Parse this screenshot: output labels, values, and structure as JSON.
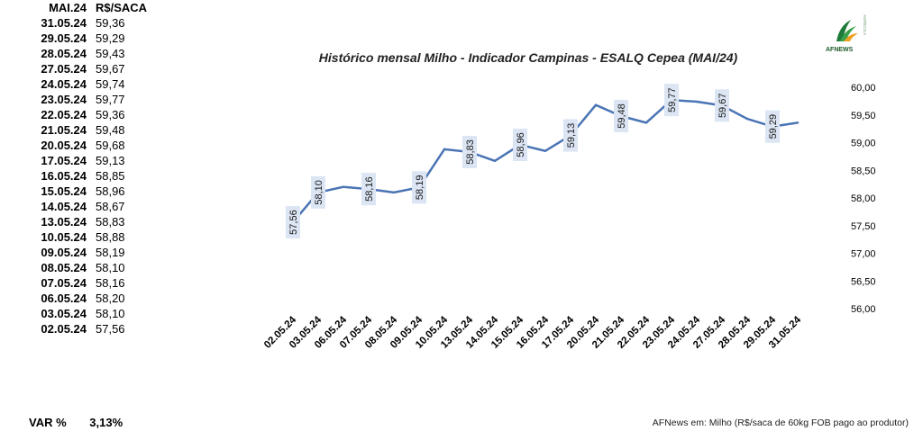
{
  "table": {
    "header_date": "MAI.24",
    "header_value": "R$/SACA",
    "rows": [
      {
        "date": "31.05.24",
        "value": "59,36"
      },
      {
        "date": "29.05.24",
        "value": "59,29"
      },
      {
        "date": "28.05.24",
        "value": "59,43"
      },
      {
        "date": "27.05.24",
        "value": "59,67"
      },
      {
        "date": "24.05.24",
        "value": "59,74"
      },
      {
        "date": "23.05.24",
        "value": "59,77"
      },
      {
        "date": "22.05.24",
        "value": "59,36"
      },
      {
        "date": "21.05.24",
        "value": "59,48"
      },
      {
        "date": "20.05.24",
        "value": "59,68"
      },
      {
        "date": "17.05.24",
        "value": "59,13"
      },
      {
        "date": "16.05.24",
        "value": "58,85"
      },
      {
        "date": "15.05.24",
        "value": "58,96"
      },
      {
        "date": "14.05.24",
        "value": "58,67"
      },
      {
        "date": "13.05.24",
        "value": "58,83"
      },
      {
        "date": "10.05.24",
        "value": "58,88"
      },
      {
        "date": "09.05.24",
        "value": "58,19"
      },
      {
        "date": "08.05.24",
        "value": "58,10"
      },
      {
        "date": "07.05.24",
        "value": "58,16"
      },
      {
        "date": "06.05.24",
        "value": "58,20"
      },
      {
        "date": "03.05.24",
        "value": "58,10"
      },
      {
        "date": "02.05.24",
        "value": "57,56"
      }
    ]
  },
  "var": {
    "label": "VAR %",
    "value": "3,13%"
  },
  "footer": "AFNews em: Milho (R$/saca de 60kg FOB pago ao produtor)",
  "logo": {
    "text": "AFNEWS",
    "side_text": "AGRÍCOLA"
  },
  "chart_data": {
    "type": "line",
    "title": "Histórico mensal Milho - Indicador Campinas - ESALQ Cepea (MAI/24)",
    "categories": [
      "02.05.24",
      "03.05.24",
      "06.05.24",
      "07.05.24",
      "08.05.24",
      "09.05.24",
      "10.05.24",
      "13.05.24",
      "14.05.24",
      "15.05.24",
      "16.05.24",
      "17.05.24",
      "20.05.24",
      "21.05.24",
      "22.05.24",
      "23.05.24",
      "24.05.24",
      "27.05.24",
      "28.05.24",
      "29.05.24",
      "31.05.24"
    ],
    "values": [
      57.56,
      58.1,
      58.2,
      58.16,
      58.1,
      58.19,
      58.88,
      58.83,
      58.67,
      58.96,
      58.85,
      59.13,
      59.68,
      59.48,
      59.36,
      59.77,
      59.74,
      59.67,
      59.43,
      59.29,
      59.36
    ],
    "data_labels": [
      {
        "index": 0,
        "text": "57,56"
      },
      {
        "index": 1,
        "text": "58,10"
      },
      {
        "index": 3,
        "text": "58,16"
      },
      {
        "index": 5,
        "text": "58,19"
      },
      {
        "index": 7,
        "text": "58,83"
      },
      {
        "index": 9,
        "text": "58,96"
      },
      {
        "index": 11,
        "text": "59,13"
      },
      {
        "index": 13,
        "text": "59,48"
      },
      {
        "index": 15,
        "text": "59,77"
      },
      {
        "index": 17,
        "text": "59,67"
      },
      {
        "index": 19,
        "text": "59,29"
      }
    ],
    "ylim": [
      56.0,
      60.0
    ],
    "y_ticks": [
      "56,00",
      "56,50",
      "57,00",
      "57,50",
      "58,00",
      "58,50",
      "59,00",
      "59,50",
      "60,00"
    ],
    "y_tick_values": [
      56.0,
      56.5,
      57.0,
      57.5,
      58.0,
      58.5,
      59.0,
      59.5,
      60.0
    ],
    "y_axis_side": "right",
    "grid": false,
    "line_color": "#4a74b5",
    "label_bg_color": "#dbe5f3"
  }
}
